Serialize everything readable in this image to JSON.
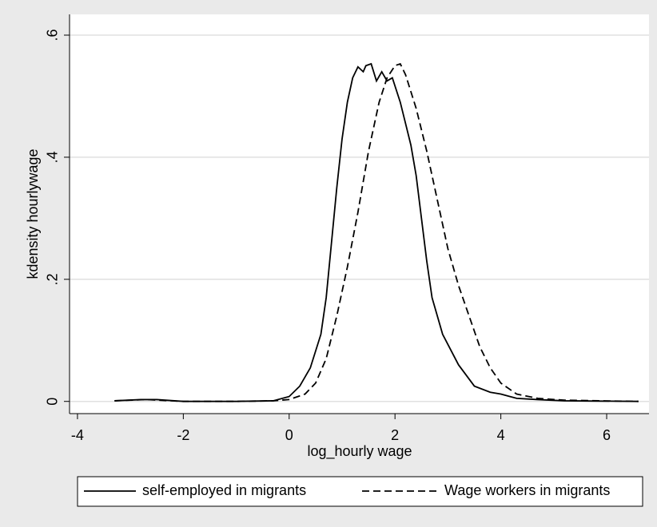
{
  "chart_data": {
    "type": "line",
    "x_label": "log_hourly wage",
    "y_label": "kdensity hourlywage",
    "xlim": [
      -4.15,
      6.8
    ],
    "ylim": [
      -0.02,
      0.634
    ],
    "xticks": [
      -4,
      -2,
      0,
      2,
      4,
      6
    ],
    "yticks": [
      0,
      {
        "value": 0.2,
        "label": ".2"
      },
      {
        "value": 0.4,
        "label": ".4"
      },
      {
        "value": 0.6,
        "label": ".6"
      }
    ],
    "grid": true,
    "legend": "bottom",
    "series": [
      {
        "name": "self-employed in migrants",
        "color": "#000000",
        "line_style": "solid",
        "x": [
          -3.3,
          -2.8,
          -2.5,
          -2,
          -1,
          -0.3,
          0,
          0.2,
          0.4,
          0.6,
          0.7,
          0.8,
          0.9,
          1.0,
          1.1,
          1.2,
          1.3,
          1.4,
          1.45,
          1.55,
          1.65,
          1.75,
          1.85,
          1.95,
          2.1,
          2.3,
          2.4,
          2.5,
          2.6,
          2.7,
          2.9,
          3.2,
          3.5,
          3.8,
          4.0,
          4.3,
          4.7,
          5.2,
          6.6
        ],
        "values": [
          0.001,
          0.003,
          0.003,
          0.0,
          0.0,
          0.001,
          0.008,
          0.025,
          0.055,
          0.11,
          0.17,
          0.26,
          0.35,
          0.43,
          0.49,
          0.53,
          0.548,
          0.54,
          0.55,
          0.553,
          0.525,
          0.54,
          0.525,
          0.53,
          0.49,
          0.42,
          0.37,
          0.3,
          0.23,
          0.17,
          0.11,
          0.06,
          0.025,
          0.015,
          0.012,
          0.005,
          0.003,
          0.001,
          0.0
        ]
      },
      {
        "name": "Wage workers in migrants",
        "color": "#000000",
        "line_style": "dashed",
        "x": [
          -3.3,
          -2.7,
          -2,
          -1,
          -0.3,
          0,
          0.3,
          0.5,
          0.7,
          0.9,
          1.1,
          1.3,
          1.5,
          1.7,
          1.85,
          2.0,
          2.1,
          2.2,
          2.4,
          2.6,
          2.8,
          3.0,
          3.2,
          3.4,
          3.6,
          3.8,
          4.0,
          4.3,
          4.7,
          5.2,
          6.6
        ],
        "values": [
          0.001,
          0.003,
          0.0,
          0.0,
          0.001,
          0.003,
          0.012,
          0.03,
          0.07,
          0.14,
          0.22,
          0.31,
          0.41,
          0.49,
          0.53,
          0.55,
          0.553,
          0.535,
          0.48,
          0.41,
          0.33,
          0.25,
          0.19,
          0.14,
          0.09,
          0.055,
          0.03,
          0.012,
          0.005,
          0.002,
          0.0
        ]
      }
    ]
  }
}
